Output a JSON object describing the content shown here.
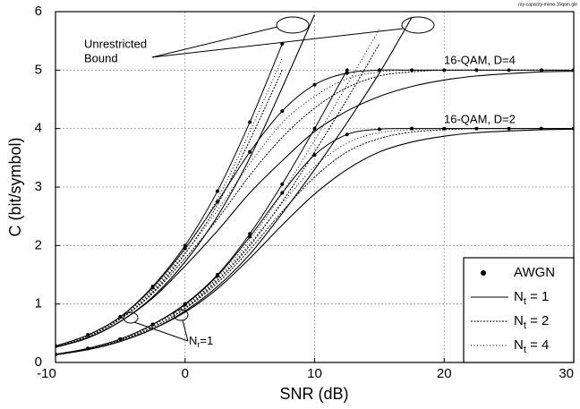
{
  "chart_data": {
    "type": "line",
    "source": "ray-capacity-mimo-16qam.gle",
    "x_label": "SNR (dB)",
    "y_label": "C (bit/symbol)",
    "xlim": [
      -10,
      30
    ],
    "xticks": [
      -10,
      0,
      10,
      20,
      30
    ],
    "ylim": [
      0,
      6
    ],
    "yticks": [
      0,
      1,
      2,
      3,
      4,
      5,
      6
    ],
    "grid": true,
    "color": "#000000",
    "legend_corner": "lower right",
    "legend": [
      {
        "style": "awgn",
        "text": "AWGN"
      },
      {
        "style": "nt1",
        "text": "N",
        "sub": "t",
        "suffix": " = 1"
      },
      {
        "style": "nt2",
        "text": "N",
        "sub": "t",
        "suffix": " = 2"
      },
      {
        "style": "nt4",
        "text": "N",
        "sub": "t",
        "suffix": " = 4"
      }
    ],
    "annotations": {
      "bound": [
        "Unrestricted",
        "Bound"
      ],
      "d4": "16-QAM, D=4",
      "d2": "16-QAM, D=2",
      "nr": {
        "text": "N",
        "sub": "r",
        "suffix": "=1"
      }
    },
    "x": [
      -10,
      -7.5,
      -5,
      -2.5,
      0,
      2.5,
      5,
      7.5,
      10,
      12.5,
      15,
      17.5,
      20,
      22.5,
      25,
      27.5,
      30
    ],
    "series": [
      {
        "style": "awgn",
        "values": [
          0.28,
          0.47,
          0.78,
          1.3,
          2.0,
          2.93,
          4.11,
          5.45,
          null,
          null,
          null,
          null,
          null,
          null,
          null,
          null,
          null
        ]
      },
      {
        "style": "nt4",
        "values": [
          0.27,
          0.45,
          0.76,
          1.25,
          1.93,
          2.8,
          3.95,
          5.2,
          null,
          null,
          null,
          null,
          null,
          null,
          null,
          null,
          null
        ]
      },
      {
        "style": "nt2",
        "values": [
          0.27,
          0.44,
          0.74,
          1.2,
          1.86,
          2.7,
          3.8,
          5.0,
          null,
          null,
          null,
          null,
          null,
          null,
          null,
          null,
          null
        ]
      },
      {
        "style": "nt1",
        "values": [
          0.26,
          0.42,
          0.7,
          1.12,
          1.72,
          2.5,
          3.5,
          4.7,
          5.95,
          null,
          null,
          null,
          null,
          null,
          null,
          null,
          null
        ]
      },
      {
        "style": "awgn",
        "values": [
          0.28,
          0.47,
          0.78,
          1.28,
          1.95,
          2.75,
          3.6,
          4.3,
          4.75,
          4.95,
          5.0,
          5.0,
          5.0,
          5.0,
          5.0,
          5.0,
          5.0
        ]
      },
      {
        "style": "nt4",
        "values": [
          0.27,
          0.45,
          0.76,
          1.23,
          1.87,
          2.6,
          3.4,
          4.1,
          4.55,
          4.85,
          4.97,
          5.0,
          5.0,
          5.0,
          5.0,
          5.0,
          5.0
        ]
      },
      {
        "style": "nt2",
        "values": [
          0.27,
          0.44,
          0.74,
          1.18,
          1.78,
          2.45,
          3.2,
          3.85,
          4.35,
          4.7,
          4.9,
          4.97,
          5.0,
          5.0,
          5.0,
          5.0,
          5.0
        ]
      },
      {
        "style": "nt1",
        "values": [
          0.26,
          0.42,
          0.7,
          1.1,
          1.65,
          2.25,
          2.9,
          3.45,
          3.95,
          4.3,
          4.55,
          4.72,
          4.83,
          4.9,
          4.94,
          4.97,
          4.98
        ]
      },
      {
        "style": "awgn",
        "values": [
          0.14,
          0.24,
          0.4,
          0.65,
          1.0,
          1.5,
          2.2,
          3.05,
          4.0,
          5.0,
          null,
          null,
          null,
          null,
          null,
          null,
          null
        ]
      },
      {
        "style": "nt4",
        "values": [
          0.14,
          0.23,
          0.39,
          0.63,
          0.97,
          1.45,
          2.1,
          2.9,
          3.8,
          4.75,
          5.7,
          null,
          null,
          null,
          null,
          null,
          null
        ]
      },
      {
        "style": "nt2",
        "values": [
          0.13,
          0.23,
          0.38,
          0.6,
          0.93,
          1.4,
          2.0,
          2.75,
          3.6,
          4.5,
          5.45,
          null,
          null,
          null,
          null,
          null,
          null
        ]
      },
      {
        "style": "nt1",
        "values": [
          0.13,
          0.22,
          0.36,
          0.57,
          0.88,
          1.3,
          1.85,
          2.55,
          3.3,
          4.1,
          4.95,
          5.9,
          null,
          null,
          null,
          null,
          null
        ]
      },
      {
        "style": "awgn",
        "values": [
          0.14,
          0.24,
          0.4,
          0.65,
          0.99,
          1.48,
          2.15,
          2.9,
          3.55,
          3.9,
          3.99,
          4.0,
          4.0,
          4.0,
          4.0,
          4.0,
          4.0
        ]
      },
      {
        "style": "nt4",
        "values": [
          0.14,
          0.23,
          0.39,
          0.63,
          0.96,
          1.42,
          2.03,
          2.72,
          3.35,
          3.75,
          3.93,
          3.98,
          4.0,
          4.0,
          4.0,
          4.0,
          4.0
        ]
      },
      {
        "style": "nt2",
        "values": [
          0.13,
          0.23,
          0.38,
          0.6,
          0.92,
          1.36,
          1.93,
          2.58,
          3.17,
          3.6,
          3.83,
          3.94,
          3.98,
          4.0,
          4.0,
          4.0,
          4.0
        ]
      },
      {
        "style": "nt1",
        "values": [
          0.13,
          0.22,
          0.36,
          0.57,
          0.86,
          1.26,
          1.78,
          2.35,
          2.88,
          3.3,
          3.6,
          3.77,
          3.87,
          3.93,
          3.96,
          3.98,
          3.99
        ]
      }
    ]
  }
}
